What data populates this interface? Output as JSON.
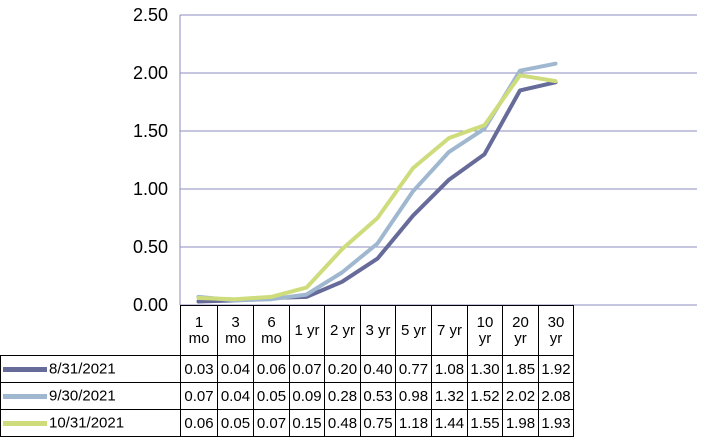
{
  "chart_data": {
    "type": "line",
    "categories": [
      "1\nmo",
      "3\nmo",
      "6\nmo",
      "1 yr",
      "2 yr",
      "3 yr",
      "5 yr",
      "7 yr",
      "10\nyr",
      "20\nyr",
      "30\nyr"
    ],
    "series": [
      {
        "name": "8/31/2021",
        "color": "#666b9a",
        "values": [
          0.03,
          0.04,
          0.06,
          0.07,
          0.2,
          0.4,
          0.77,
          1.08,
          1.3,
          1.85,
          1.92
        ]
      },
      {
        "name": "9/30/2021",
        "color": "#9fb7cf",
        "values": [
          0.07,
          0.04,
          0.05,
          0.09,
          0.28,
          0.53,
          0.98,
          1.32,
          1.52,
          2.02,
          2.08
        ]
      },
      {
        "name": "10/31/2021",
        "color": "#cfdc7c",
        "values": [
          0.06,
          0.05,
          0.07,
          0.15,
          0.48,
          0.75,
          1.18,
          1.44,
          1.55,
          1.98,
          1.93
        ]
      }
    ],
    "y_ticks": [
      "0.00",
      "0.50",
      "1.00",
      "1.50",
      "2.00",
      "2.50"
    ],
    "ylim": [
      0,
      2.5
    ],
    "grid": true,
    "legend": "data-table",
    "gridline_color": "#8b8bbf"
  }
}
